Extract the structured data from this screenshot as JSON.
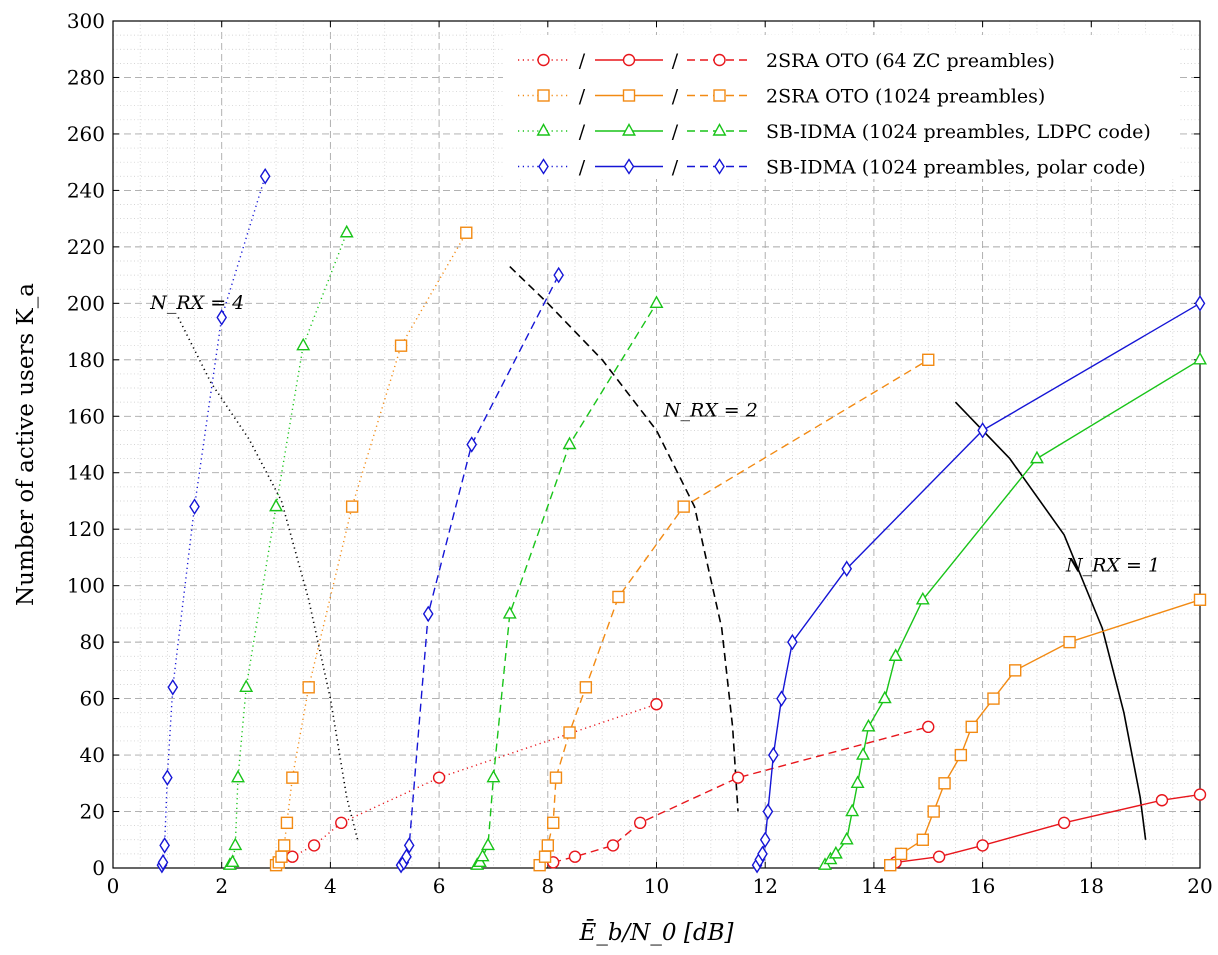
{
  "chart_data": {
    "type": "line",
    "xlabel": "Ē_b/N_0 [dB]",
    "ylabel": "Number of active users K_a",
    "xlim": [
      0,
      20
    ],
    "ylim": [
      0,
      300
    ],
    "x_ticks": [
      0,
      2,
      4,
      6,
      8,
      10,
      12,
      14,
      16,
      18,
      20
    ],
    "y_ticks": [
      0,
      20,
      40,
      60,
      80,
      100,
      120,
      140,
      160,
      180,
      200,
      220,
      240,
      260,
      280,
      300
    ],
    "grid": "major dashed, minor dotted",
    "legend_position": "top-right",
    "colors": {
      "red": "#e8161c",
      "orange": "#f28a13",
      "green": "#19c419",
      "blue": "#1515d6",
      "black": "#000000"
    },
    "legend": [
      {
        "label": "2SRA OTO (64 ZC preambles)",
        "color": "#e8161c",
        "marker": "circle"
      },
      {
        "label": "2SRA OTO (1024 preambles)",
        "color": "#f28a13",
        "marker": "square"
      },
      {
        "label": "SB-IDMA (1024 preambles, LDPC code)",
        "color": "#19c419",
        "marker": "triangle"
      },
      {
        "label": "SB-IDMA (1024 preambles, polar code)",
        "color": "#1515d6",
        "marker": "diamond"
      }
    ],
    "legend_separator": "/",
    "series": [
      {
        "family": "2SRA OTO (64 ZC preambles)",
        "rx": 4,
        "style": "dotted",
        "color": "#e8161c",
        "marker": "circle",
        "points": [
          [
            3.3,
            4
          ],
          [
            3.7,
            8
          ],
          [
            4.2,
            16
          ],
          [
            6.0,
            32
          ],
          [
            10.0,
            58
          ]
        ]
      },
      {
        "family": "2SRA OTO (64 ZC preambles)",
        "rx": 2,
        "style": "dashed",
        "color": "#e8161c",
        "marker": "circle",
        "points": [
          [
            8.1,
            2
          ],
          [
            8.5,
            4
          ],
          [
            9.2,
            8
          ],
          [
            9.7,
            16
          ],
          [
            11.5,
            32
          ],
          [
            15.0,
            50
          ]
        ]
      },
      {
        "family": "2SRA OTO (64 ZC preambles)",
        "rx": 1,
        "style": "solid",
        "color": "#e8161c",
        "marker": "circle",
        "points": [
          [
            14.4,
            2
          ],
          [
            15.2,
            4
          ],
          [
            16.0,
            8
          ],
          [
            17.5,
            16
          ],
          [
            19.3,
            24
          ],
          [
            20.0,
            26
          ]
        ]
      },
      {
        "family": "2SRA OTO (1024 preambles)",
        "rx": 4,
        "style": "dotted",
        "color": "#f28a13",
        "marker": "square",
        "points": [
          [
            3.0,
            1
          ],
          [
            3.05,
            2
          ],
          [
            3.1,
            4
          ],
          [
            3.15,
            8
          ],
          [
            3.2,
            16
          ],
          [
            3.3,
            32
          ],
          [
            3.6,
            64
          ],
          [
            4.4,
            128
          ],
          [
            5.3,
            185
          ],
          [
            6.5,
            225
          ]
        ]
      },
      {
        "family": "2SRA OTO (1024 preambles)",
        "rx": 2,
        "style": "dashed",
        "color": "#f28a13",
        "marker": "square",
        "points": [
          [
            7.85,
            1
          ],
          [
            7.95,
            4
          ],
          [
            8.0,
            8
          ],
          [
            8.1,
            16
          ],
          [
            8.15,
            32
          ],
          [
            8.4,
            48
          ],
          [
            8.7,
            64
          ],
          [
            9.3,
            96
          ],
          [
            10.5,
            128
          ],
          [
            15.0,
            180
          ]
        ]
      },
      {
        "family": "2SRA OTO (1024 preambles)",
        "rx": 1,
        "style": "solid",
        "color": "#f28a13",
        "marker": "square",
        "points": [
          [
            14.3,
            1
          ],
          [
            14.5,
            5
          ],
          [
            14.9,
            10
          ],
          [
            15.1,
            20
          ],
          [
            15.3,
            30
          ],
          [
            15.6,
            40
          ],
          [
            15.8,
            50
          ],
          [
            16.2,
            60
          ],
          [
            16.6,
            70
          ],
          [
            17.6,
            80
          ],
          [
            20.0,
            95
          ]
        ]
      },
      {
        "family": "SB-IDMA (1024 preambles, LDPC code)",
        "rx": 4,
        "style": "dotted",
        "color": "#19c419",
        "marker": "triangle",
        "points": [
          [
            2.15,
            1
          ],
          [
            2.2,
            2
          ],
          [
            2.25,
            8
          ],
          [
            2.3,
            32
          ],
          [
            2.45,
            64
          ],
          [
            3.0,
            128
          ],
          [
            3.5,
            185
          ],
          [
            4.3,
            225
          ]
        ]
      },
      {
        "family": "SB-IDMA (1024 preambles, LDPC code)",
        "rx": 2,
        "style": "dashed",
        "color": "#19c419",
        "marker": "triangle",
        "points": [
          [
            6.7,
            1
          ],
          [
            6.75,
            2
          ],
          [
            6.8,
            4
          ],
          [
            6.9,
            8
          ],
          [
            7.0,
            32
          ],
          [
            7.3,
            90
          ],
          [
            8.4,
            150
          ],
          [
            10.0,
            200
          ]
        ]
      },
      {
        "family": "SB-IDMA (1024 preambles, LDPC code)",
        "rx": 1,
        "style": "solid",
        "color": "#19c419",
        "marker": "triangle",
        "points": [
          [
            13.1,
            1
          ],
          [
            13.2,
            3
          ],
          [
            13.3,
            5
          ],
          [
            13.5,
            10
          ],
          [
            13.6,
            20
          ],
          [
            13.7,
            30
          ],
          [
            13.8,
            40
          ],
          [
            13.9,
            50
          ],
          [
            14.2,
            60
          ],
          [
            14.4,
            75
          ],
          [
            14.9,
            95
          ],
          [
            17.0,
            145
          ],
          [
            20.0,
            180
          ]
        ]
      },
      {
        "family": "SB-IDMA (1024 preambles, polar code)",
        "rx": 4,
        "style": "dotted",
        "color": "#1515d6",
        "marker": "diamond",
        "points": [
          [
            0.9,
            1
          ],
          [
            0.92,
            2
          ],
          [
            0.95,
            8
          ],
          [
            1.0,
            32
          ],
          [
            1.1,
            64
          ],
          [
            1.5,
            128
          ],
          [
            2.0,
            195
          ],
          [
            2.8,
            245
          ]
        ]
      },
      {
        "family": "SB-IDMA (1024 preambles, polar code)",
        "rx": 2,
        "style": "dashed",
        "color": "#1515d6",
        "marker": "diamond",
        "points": [
          [
            5.3,
            1
          ],
          [
            5.35,
            2
          ],
          [
            5.4,
            4
          ],
          [
            5.45,
            8
          ],
          [
            5.8,
            90
          ],
          [
            6.6,
            150
          ],
          [
            8.2,
            210
          ]
        ]
      },
      {
        "family": "SB-IDMA (1024 preambles, polar code)",
        "rx": 1,
        "style": "solid",
        "color": "#1515d6",
        "marker": "diamond",
        "points": [
          [
            11.85,
            1
          ],
          [
            11.9,
            3
          ],
          [
            11.95,
            5
          ],
          [
            12.0,
            10
          ],
          [
            12.05,
            20
          ],
          [
            12.15,
            40
          ],
          [
            12.3,
            60
          ],
          [
            12.5,
            80
          ],
          [
            13.5,
            106
          ],
          [
            16.0,
            155
          ],
          [
            20.0,
            200
          ]
        ]
      }
    ],
    "boundary_curves": [
      {
        "label": "N_RX = 4",
        "label_at": [
          1.55,
          198
        ],
        "style": "dotted",
        "points": [
          [
            1.2,
            195
          ],
          [
            1.8,
            172
          ],
          [
            2.5,
            152
          ],
          [
            3.1,
            130
          ],
          [
            3.6,
            95
          ],
          [
            4.0,
            60
          ],
          [
            4.3,
            25
          ],
          [
            4.5,
            10
          ]
        ]
      },
      {
        "label": "N_RX = 2",
        "label_at": [
          11.0,
          160
        ],
        "style": "dashed",
        "points": [
          [
            7.3,
            213
          ],
          [
            8.0,
            200
          ],
          [
            9.0,
            180
          ],
          [
            10.0,
            155
          ],
          [
            10.7,
            128
          ],
          [
            11.2,
            85
          ],
          [
            11.4,
            50
          ],
          [
            11.5,
            20
          ]
        ]
      },
      {
        "label": "N_RX = 1",
        "label_at": [
          18.4,
          105
        ],
        "style": "solid",
        "points": [
          [
            15.5,
            165
          ],
          [
            16.5,
            145
          ],
          [
            17.5,
            118
          ],
          [
            18.2,
            85
          ],
          [
            18.6,
            55
          ],
          [
            18.9,
            25
          ],
          [
            19.0,
            10
          ]
        ]
      }
    ]
  }
}
